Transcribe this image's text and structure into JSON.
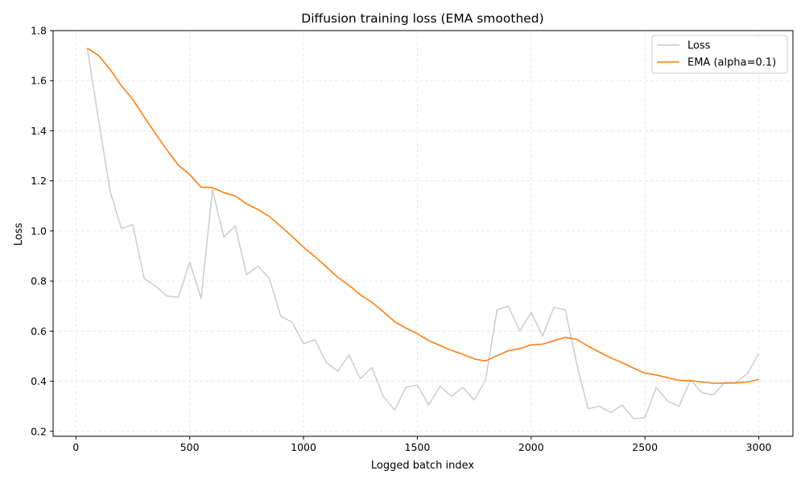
{
  "chart_data": {
    "type": "line",
    "title": "Diffusion training loss (EMA smoothed)",
    "xlabel": "Logged batch index",
    "ylabel": "Loss",
    "xlim": [
      -100,
      3150
    ],
    "ylim": [
      0.18,
      1.8
    ],
    "xticks": [
      0,
      500,
      1000,
      1500,
      2000,
      2500,
      3000
    ],
    "yticks": [
      0.2,
      0.4,
      0.6,
      0.8,
      1.0,
      1.2,
      1.4,
      1.6,
      1.8
    ],
    "ytick_labels": [
      "0.2",
      "0.4",
      "0.6",
      "0.8",
      "1.0",
      "1.2",
      "1.4",
      "1.6",
      "1.8"
    ],
    "grid": true,
    "legend_position": "top-right",
    "x": [
      50,
      100,
      150,
      200,
      250,
      300,
      350,
      400,
      450,
      500,
      550,
      600,
      650,
      700,
      750,
      800,
      850,
      900,
      950,
      1000,
      1050,
      1100,
      1150,
      1200,
      1250,
      1300,
      1350,
      1400,
      1450,
      1500,
      1550,
      1600,
      1650,
      1700,
      1750,
      1800,
      1850,
      1900,
      1950,
      2000,
      2050,
      2100,
      2150,
      2200,
      2250,
      2300,
      2350,
      2400,
      2450,
      2500,
      2550,
      2600,
      2650,
      2700,
      2750,
      2800,
      2850,
      2900,
      2950,
      3000
    ],
    "series": [
      {
        "name": "Loss",
        "color": "#cccccc",
        "values": [
          1.73,
          1.44,
          1.16,
          1.01,
          1.025,
          0.81,
          0.78,
          0.74,
          0.735,
          0.875,
          0.73,
          1.165,
          0.975,
          1.02,
          0.825,
          0.86,
          0.81,
          0.66,
          0.635,
          0.55,
          0.565,
          0.475,
          0.44,
          0.505,
          0.41,
          0.455,
          0.34,
          0.285,
          0.375,
          0.385,
          0.305,
          0.38,
          0.34,
          0.375,
          0.325,
          0.405,
          0.685,
          0.7,
          0.6,
          0.675,
          0.58,
          0.695,
          0.685,
          0.47,
          0.29,
          0.3,
          0.275,
          0.305,
          0.25,
          0.255,
          0.375,
          0.32,
          0.3,
          0.405,
          0.355,
          0.345,
          0.395,
          0.395,
          0.43,
          0.51
        ]
      },
      {
        "name": "EMA (alpha=0.1)",
        "color": "#ff7f0e",
        "values": [
          1.73,
          1.7,
          1.645,
          1.58,
          1.525,
          1.455,
          1.388,
          1.323,
          1.263,
          1.225,
          1.175,
          1.173,
          1.153,
          1.14,
          1.108,
          1.085,
          1.058,
          1.018,
          0.978,
          0.935,
          0.897,
          0.857,
          0.815,
          0.783,
          0.745,
          0.715,
          0.678,
          0.638,
          0.612,
          0.59,
          0.562,
          0.543,
          0.523,
          0.507,
          0.489,
          0.481,
          0.502,
          0.522,
          0.53,
          0.545,
          0.548,
          0.562,
          0.575,
          0.567,
          0.54,
          0.516,
          0.493,
          0.474,
          0.452,
          0.432,
          0.425,
          0.414,
          0.403,
          0.402,
          0.397,
          0.392,
          0.392,
          0.393,
          0.397,
          0.407
        ]
      }
    ]
  }
}
